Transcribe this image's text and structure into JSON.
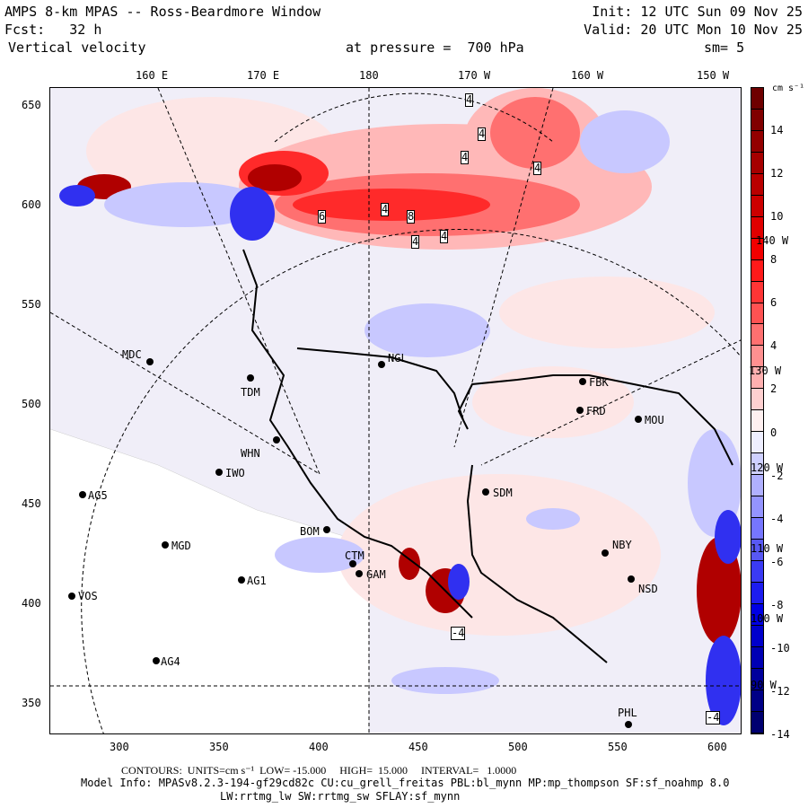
{
  "header": {
    "title": "AMPS 8-km MPAS -- Ross-Beardmore Window",
    "init": "Init: 12 UTC Sun 09 Nov 25",
    "fcst": "Fcst:   32 h",
    "valid": "Valid: 20 UTC Mon 10 Nov 25",
    "field": "Vertical velocity",
    "level": "at pressure =  700 hPa",
    "smooth": "sm= 5"
  },
  "lon_labels": [
    "160 E",
    "170 E",
    "180",
    "170 W",
    "160 W",
    "150 W"
  ],
  "right_lon_labels": [
    "140 W",
    "130 W",
    "120 W",
    "110 W",
    "100 W",
    "90 W"
  ],
  "y_ticks": [
    "650",
    "600",
    "550",
    "500",
    "450",
    "400",
    "350"
  ],
  "x_ticks": [
    "300",
    "350",
    "400",
    "450",
    "500",
    "550",
    "600"
  ],
  "colorbar": {
    "units": "cm s⁻¹",
    "labels": [
      "14",
      "12",
      "10",
      "8",
      "6",
      "4",
      "2",
      "0",
      "-2",
      "-4",
      "-6",
      "-8",
      "-10",
      "-12",
      "-14"
    ],
    "colors": [
      "#6e0000",
      "#800000",
      "#930000",
      "#a60000",
      "#b90000",
      "#cc0000",
      "#e00000",
      "#f20000",
      "#ff1a1a",
      "#ff3535",
      "#ff5252",
      "#ff7070",
      "#ff9090",
      "#ffb0b0",
      "#ffd0d0",
      "#fff0f0",
      "#eeeeff",
      "#cfd0ff",
      "#b0b0ff",
      "#9494ff",
      "#7676ff",
      "#5858f4",
      "#3a3af4",
      "#1c1cf0",
      "#0000e4",
      "#0000cc",
      "#0000b4",
      "#00009c",
      "#000086",
      "#000070"
    ]
  },
  "stations": [
    "MDC",
    "TDM",
    "WHN",
    "IWO",
    "AG5",
    "MGD",
    "AG1",
    "VOS",
    "AG4",
    "BOM",
    "CTM",
    "GAM",
    "NGL",
    "FBK",
    "FRD",
    "MOU",
    "SDM",
    "NBY",
    "NSD",
    "PHL"
  ],
  "contour_labels": [
    "4",
    "4",
    "4",
    "4",
    "6",
    "4",
    "8",
    "4",
    "4",
    "-4",
    "-4"
  ],
  "footer": {
    "contours": "CONTOURS:  UNITS=cm s⁻¹  LOW= -15.000     HIGH=  15.000     INTERVAL=   1.0000",
    "model": "Model Info: MPASv8.2.3-194-gf29cd82c CU:cu_grell_freitas PBL:bl_mynn MP:mp_thompson SF:sf_noahmp 8.0",
    "model2": "LW:rrtmg_lw SW:rrtmg_sw SFLAY:sf_mynn"
  }
}
